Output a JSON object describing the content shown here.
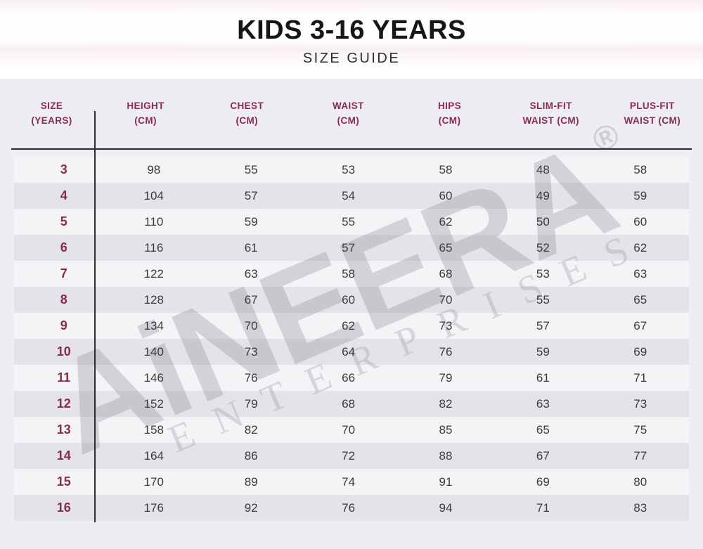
{
  "header": {
    "title": "KIDS 3-16 YEARS",
    "subtitle": "SIZE GUIDE"
  },
  "watermark": {
    "brand": "AiNEERA",
    "registered": "®",
    "subtext": "ENTERPRISES"
  },
  "colors": {
    "accent_maroon": "#882c4c",
    "data_text": "#3b3b3d",
    "table_background": "#eeeef2",
    "row_stripe_light": "#f4f4f7",
    "row_stripe_dark": "#e4e4e8",
    "divider_line": "#2c2c2e",
    "title_band_pink": "#faeff0"
  },
  "table": {
    "headers": [
      {
        "id": "size-years",
        "line1": "SIZE",
        "line2": "(YEARS)"
      },
      {
        "id": "height-cm",
        "line1": "HEIGHT",
        "line2": "(CM)"
      },
      {
        "id": "chest-cm",
        "line1": "CHEST",
        "line2": "(CM)"
      },
      {
        "id": "waist-cm",
        "line1": "WAIST",
        "line2": "(CM)"
      },
      {
        "id": "hips-cm",
        "line1": "HIPS",
        "line2": "(CM)"
      },
      {
        "id": "slim-fit-waist-cm",
        "line1": "SLIM-FIT",
        "line2": "WAIST (CM)"
      },
      {
        "id": "plus-fit-waist-cm",
        "line1": "PLUS-FIT",
        "line2": "WAIST (CM)"
      }
    ],
    "rows": [
      [
        "3",
        "98",
        "55",
        "53",
        "58",
        "48",
        "58"
      ],
      [
        "4",
        "104",
        "57",
        "54",
        "60",
        "49",
        "59"
      ],
      [
        "5",
        "110",
        "59",
        "55",
        "62",
        "50",
        "60"
      ],
      [
        "6",
        "116",
        "61",
        "57",
        "65",
        "52",
        "62"
      ],
      [
        "7",
        "122",
        "63",
        "58",
        "68",
        "53",
        "63"
      ],
      [
        "8",
        "128",
        "67",
        "60",
        "70",
        "55",
        "65"
      ],
      [
        "9",
        "134",
        "70",
        "62",
        "73",
        "57",
        "67"
      ],
      [
        "10",
        "140",
        "73",
        "64",
        "76",
        "59",
        "69"
      ],
      [
        "11",
        "146",
        "76",
        "66",
        "79",
        "61",
        "71"
      ],
      [
        "12",
        "152",
        "79",
        "68",
        "82",
        "63",
        "73"
      ],
      [
        "13",
        "158",
        "82",
        "70",
        "85",
        "65",
        "75"
      ],
      [
        "14",
        "164",
        "86",
        "72",
        "88",
        "67",
        "77"
      ],
      [
        "15",
        "170",
        "89",
        "74",
        "91",
        "69",
        "80"
      ],
      [
        "16",
        "176",
        "92",
        "76",
        "94",
        "71",
        "83"
      ]
    ]
  }
}
